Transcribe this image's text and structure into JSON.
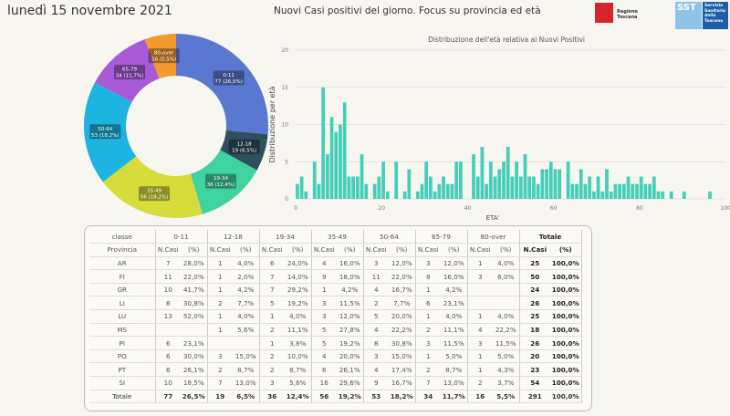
{
  "header": {
    "date": "lunedì 15 novembre 2021",
    "title": "Nuovi Casi positivi del giorno. Focus su provincia ed età",
    "logo_regione": "Regione Toscana",
    "logo_sst": "SST",
    "logo_sst_text": "Servizio Sanitario della Toscana"
  },
  "chart_data": [
    {
      "type": "pie",
      "donut": true,
      "categories": [
        "0-11",
        "12-18",
        "19-34",
        "35-49",
        "50-64",
        "65-79",
        "80-over"
      ],
      "values": [
        77,
        19,
        36,
        56,
        53,
        34,
        16
      ],
      "labels": [
        "77 (26,5%)",
        "19 (6,5%)",
        "36 (12,4%)",
        "56 (19,2%)",
        "53 (18,2%)",
        "34 (11,7%)",
        "16 (5,5%)"
      ],
      "colors": [
        "#5b78d0",
        "#2e4f5e",
        "#3ed3a0",
        "#d6dd3a",
        "#1db4e0",
        "#a95ad6",
        "#f09a30"
      ]
    },
    {
      "type": "bar",
      "title": "Distribuzione dell'età relativa ai Nuovi Positivi",
      "xlabel": "ETA'",
      "ylabel": "Distribuzione per età",
      "xlim": [
        0,
        100
      ],
      "ylim": [
        0,
        20
      ],
      "xticks": [
        0,
        20,
        40,
        60,
        80,
        100
      ],
      "yticks": [
        0,
        5,
        10,
        15,
        20
      ],
      "grid": true,
      "color": "#45cfb8",
      "x": [
        0,
        1,
        2,
        4,
        5,
        6,
        7,
        8,
        9,
        10,
        11,
        12,
        13,
        14,
        15,
        16,
        18,
        19,
        20,
        21,
        23,
        25,
        26,
        28,
        29,
        30,
        31,
        32,
        33,
        34,
        35,
        36,
        37,
        38,
        41,
        42,
        43,
        44,
        45,
        46,
        47,
        48,
        49,
        50,
        51,
        52,
        53,
        54,
        55,
        56,
        57,
        58,
        59,
        60,
        61,
        63,
        64,
        65,
        66,
        67,
        68,
        69,
        70,
        71,
        72,
        73,
        74,
        75,
        76,
        77,
        78,
        79,
        80,
        81,
        82,
        83,
        84,
        85,
        87,
        90,
        96
      ],
      "values": [
        2,
        3,
        1,
        5,
        2,
        15,
        6,
        11,
        9,
        10,
        13,
        3,
        3,
        3,
        6,
        2,
        2,
        3,
        5,
        1,
        5,
        1,
        4,
        1,
        2,
        5,
        3,
        1,
        2,
        3,
        2,
        2,
        5,
        5,
        6,
        3,
        7,
        2,
        5,
        3,
        4,
        5,
        7,
        3,
        5,
        3,
        6,
        3,
        3,
        2,
        4,
        4,
        5,
        4,
        4,
        5,
        2,
        2,
        4,
        2,
        3,
        1,
        3,
        1,
        4,
        1,
        2,
        2,
        2,
        3,
        2,
        2,
        3,
        2,
        2,
        3,
        1,
        1,
        1,
        1,
        1
      ]
    }
  ],
  "table": {
    "corner_top": "classe",
    "corner_bottom": "Provincia",
    "groups": [
      "0-11",
      "12-18",
      "19-34",
      "35-49",
      "50-64",
      "65-79",
      "80-over",
      "Totale"
    ],
    "sub": [
      "N.Casi",
      "(%)"
    ],
    "rows": [
      {
        "p": "AR",
        "c": [
          "7",
          "28,0%",
          "1",
          "4,0%",
          "6",
          "24,0%",
          "4",
          "16,0%",
          "3",
          "12,0%",
          "3",
          "12,0%",
          "1",
          "4,0%",
          "25",
          "100,0%"
        ]
      },
      {
        "p": "FI",
        "c": [
          "11",
          "22,0%",
          "1",
          "2,0%",
          "7",
          "14,0%",
          "9",
          "18,0%",
          "11",
          "22,0%",
          "8",
          "16,0%",
          "3",
          "6,0%",
          "50",
          "100,0%"
        ]
      },
      {
        "p": "GR",
        "c": [
          "10",
          "41,7%",
          "1",
          "4,2%",
          "7",
          "29,2%",
          "1",
          "4,2%",
          "4",
          "16,7%",
          "1",
          "4,2%",
          "",
          "",
          "24",
          "100,0%"
        ]
      },
      {
        "p": "LI",
        "c": [
          "8",
          "30,8%",
          "2",
          "7,7%",
          "5",
          "19,2%",
          "3",
          "11,5%",
          "2",
          "7,7%",
          "6",
          "23,1%",
          "",
          "",
          "26",
          "100,0%"
        ]
      },
      {
        "p": "LU",
        "c": [
          "13",
          "52,0%",
          "1",
          "4,0%",
          "1",
          "4,0%",
          "3",
          "12,0%",
          "5",
          "20,0%",
          "1",
          "4,0%",
          "1",
          "4,0%",
          "25",
          "100,0%"
        ]
      },
      {
        "p": "MS",
        "c": [
          "",
          "",
          "1",
          "5,6%",
          "2",
          "11,1%",
          "5",
          "27,8%",
          "4",
          "22,2%",
          "2",
          "11,1%",
          "4",
          "22,2%",
          "18",
          "100,0%"
        ]
      },
      {
        "p": "PI",
        "c": [
          "6",
          "23,1%",
          "",
          "",
          "1",
          "3,8%",
          "5",
          "19,2%",
          "8",
          "30,8%",
          "3",
          "11,5%",
          "3",
          "11,5%",
          "26",
          "100,0%"
        ]
      },
      {
        "p": "PO",
        "c": [
          "6",
          "30,0%",
          "3",
          "15,0%",
          "2",
          "10,0%",
          "4",
          "20,0%",
          "3",
          "15,0%",
          "1",
          "5,0%",
          "1",
          "5,0%",
          "20",
          "100,0%"
        ]
      },
      {
        "p": "PT",
        "c": [
          "6",
          "26,1%",
          "2",
          "8,7%",
          "2",
          "8,7%",
          "6",
          "26,1%",
          "4",
          "17,4%",
          "2",
          "8,7%",
          "1",
          "4,3%",
          "23",
          "100,0%"
        ]
      },
      {
        "p": "SI",
        "c": [
          "10",
          "18,5%",
          "7",
          "13,0%",
          "3",
          "5,6%",
          "16",
          "29,6%",
          "9",
          "16,7%",
          "7",
          "13,0%",
          "2",
          "3,7%",
          "54",
          "100,0%"
        ]
      }
    ],
    "total": {
      "p": "Totale",
      "c": [
        "77",
        "26,5%",
        "19",
        "6,5%",
        "36",
        "12,4%",
        "56",
        "19,2%",
        "53",
        "18,2%",
        "34",
        "11,7%",
        "16",
        "5,5%",
        "291",
        "100,0%"
      ]
    }
  }
}
